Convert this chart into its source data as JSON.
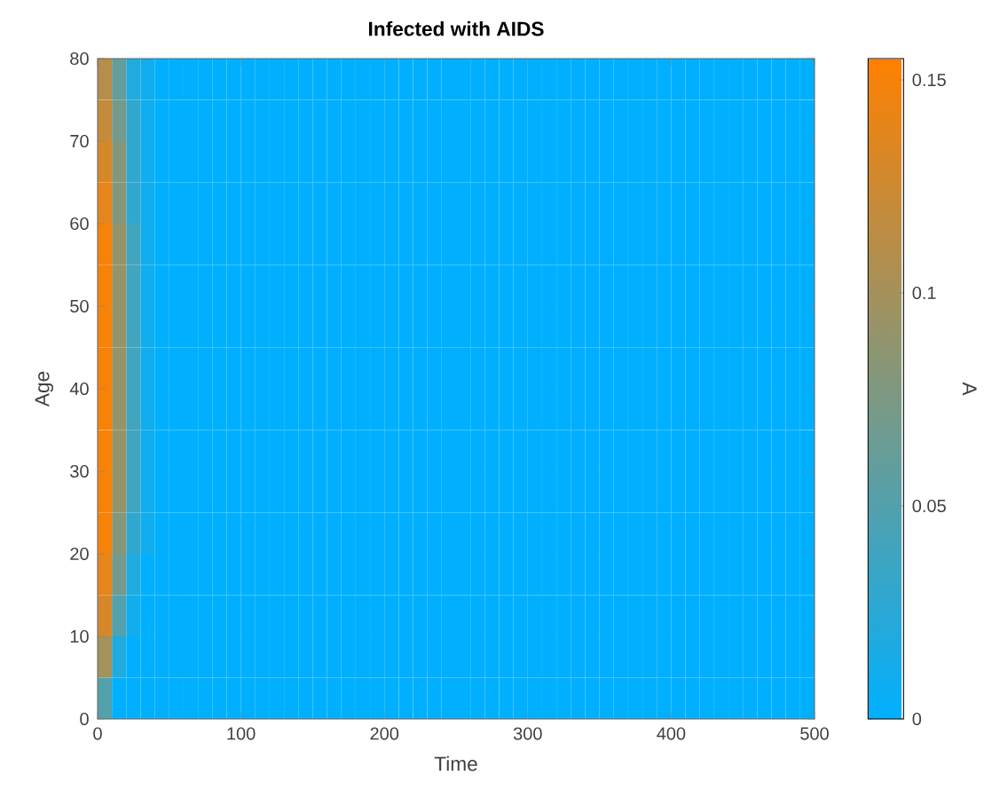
{
  "chart_data": {
    "type": "heatmap",
    "title": "Infected with AIDS",
    "xlabel": "Time",
    "ylabel": "Age",
    "clabel": "A",
    "xlim": [
      0,
      500
    ],
    "ylim": [
      0,
      80
    ],
    "xticks": [
      0,
      100,
      200,
      300,
      400,
      500
    ],
    "yticks": [
      0,
      10,
      20,
      30,
      40,
      50,
      60,
      70,
      80
    ],
    "clim": [
      0,
      0.155
    ],
    "cticks": [
      0,
      0.05,
      0.1,
      0.15
    ],
    "colors": [
      "#00b0ff",
      "#ff8000"
    ],
    "cells": [
      [
        0.11,
        0.06,
        0.02,
        0.01,
        0,
        0,
        0,
        0,
        0,
        0,
        0,
        0,
        0,
        0,
        0,
        0,
        0,
        0,
        0,
        0,
        0,
        0,
        0,
        0,
        0,
        0,
        0,
        0,
        0,
        0,
        0,
        0,
        0,
        0,
        0,
        0,
        0,
        0,
        0,
        0,
        0,
        0,
        0,
        0,
        0,
        0,
        0,
        0,
        0,
        0
      ],
      [
        0.12,
        0.07,
        0.03,
        0.01,
        0,
        0,
        0,
        0,
        0,
        0,
        0,
        0,
        0,
        0,
        0,
        0,
        0,
        0,
        0,
        0,
        0,
        0,
        0,
        0,
        0,
        0,
        0,
        0,
        0,
        0,
        0,
        0,
        0,
        0,
        0,
        0,
        0,
        0,
        0,
        0,
        0,
        0,
        0,
        0,
        0,
        0,
        0,
        0,
        0,
        0
      ],
      [
        0.13,
        0.08,
        0.03,
        0.01,
        0,
        0,
        0,
        0,
        0,
        0,
        0,
        0,
        0,
        0,
        0,
        0,
        0,
        0,
        0,
        0,
        0,
        0,
        0,
        0,
        0,
        0,
        0,
        0,
        0,
        0,
        0,
        0,
        0,
        0,
        0,
        0,
        0,
        0,
        0,
        0,
        0,
        0,
        0,
        0,
        0,
        0,
        0,
        0,
        0,
        0
      ],
      [
        0.14,
        0.08,
        0.03,
        0.01,
        0,
        0,
        0,
        0,
        0,
        0,
        0,
        0,
        0,
        0,
        0,
        0,
        0,
        0,
        0,
        0,
        0,
        0,
        0,
        0,
        0,
        0,
        0,
        0,
        0,
        0,
        0,
        0,
        0,
        0,
        0,
        0,
        0,
        0,
        0,
        0,
        0,
        0,
        0,
        0,
        0,
        0,
        0,
        0,
        0,
        0
      ],
      [
        0.15,
        0.09,
        0.04,
        0.01,
        0,
        0,
        0,
        0,
        0,
        0,
        0,
        0,
        0,
        0,
        0,
        0,
        0,
        0,
        0,
        0,
        0,
        0,
        0,
        0,
        0,
        0,
        0,
        0,
        0,
        0,
        0,
        0,
        0,
        0,
        0,
        0,
        0,
        0,
        0,
        0,
        0,
        0,
        0,
        0,
        0,
        0,
        0,
        0,
        0,
        0
      ],
      [
        0.15,
        0.09,
        0.04,
        0.01,
        0,
        0,
        0,
        0,
        0,
        0,
        0,
        0,
        0,
        0,
        0,
        0,
        0,
        0,
        0,
        0,
        0,
        0,
        0,
        0,
        0,
        0,
        0,
        0,
        0,
        0,
        0,
        0,
        0,
        0,
        0,
        0,
        0,
        0,
        0,
        0,
        0,
        0,
        0,
        0,
        0,
        0,
        0,
        0,
        0,
        0
      ],
      [
        0.15,
        0.09,
        0.04,
        0.01,
        0,
        0,
        0,
        0,
        0,
        0,
        0,
        0,
        0,
        0,
        0,
        0,
        0,
        0,
        0,
        0,
        0,
        0,
        0,
        0,
        0,
        0,
        0,
        0,
        0,
        0,
        0,
        0,
        0,
        0,
        0,
        0,
        0,
        0,
        0,
        0,
        0,
        0,
        0,
        0,
        0,
        0,
        0,
        0,
        0,
        0
      ],
      [
        0.15,
        0.09,
        0.04,
        0.01,
        0,
        0,
        0,
        0,
        0,
        0,
        0,
        0,
        0,
        0,
        0,
        0,
        0,
        0,
        0,
        0,
        0,
        0,
        0,
        0,
        0,
        0,
        0,
        0,
        0,
        0,
        0,
        0,
        0,
        0,
        0,
        0,
        0,
        0,
        0,
        0,
        0,
        0,
        0,
        0,
        0,
        0,
        0,
        0,
        0,
        0
      ],
      [
        0.15,
        0.09,
        0.04,
        0.01,
        0,
        0,
        0,
        0,
        0,
        0,
        0,
        0,
        0,
        0,
        0,
        0,
        0,
        0,
        0,
        0,
        0,
        0,
        0,
        0,
        0,
        0,
        0,
        0,
        0,
        0,
        0,
        0,
        0,
        0,
        0,
        0,
        0,
        0,
        0,
        0,
        0,
        0,
        0,
        0,
        0,
        0,
        0,
        0,
        0,
        0
      ],
      [
        0.15,
        0.09,
        0.04,
        0.01,
        0,
        0,
        0,
        0,
        0,
        0,
        0,
        0,
        0,
        0,
        0,
        0,
        0,
        0,
        0,
        0,
        0,
        0,
        0,
        0,
        0,
        0,
        0,
        0,
        0,
        0,
        0,
        0,
        0,
        0,
        0,
        0,
        0,
        0,
        0,
        0,
        0,
        0,
        0,
        0,
        0,
        0,
        0,
        0,
        0,
        0
      ],
      [
        0.15,
        0.09,
        0.04,
        0.01,
        0,
        0,
        0,
        0,
        0,
        0,
        0,
        0,
        0,
        0,
        0,
        0,
        0,
        0,
        0,
        0,
        0,
        0,
        0,
        0,
        0,
        0,
        0,
        0,
        0,
        0,
        0,
        0,
        0,
        0,
        0,
        0,
        0,
        0,
        0,
        0,
        0,
        0,
        0,
        0,
        0,
        0,
        0,
        0,
        0,
        0
      ],
      [
        0.15,
        0.08,
        0.03,
        0.01,
        0,
        0,
        0,
        0,
        0,
        0,
        0,
        0,
        0,
        0,
        0,
        0,
        0,
        0,
        0,
        0,
        0,
        0,
        0,
        0,
        0,
        0,
        0,
        0,
        0,
        0,
        0,
        0,
        0,
        0,
        0,
        0,
        0,
        0,
        0,
        0,
        0,
        0,
        0,
        0,
        0,
        0,
        0,
        0,
        0,
        0
      ],
      [
        0.14,
        0.07,
        0.02,
        0,
        0,
        0,
        0,
        0,
        0,
        0,
        0,
        0,
        0,
        0,
        0,
        0,
        0,
        0,
        0,
        0,
        0,
        0,
        0,
        0,
        0,
        0,
        0,
        0,
        0,
        0,
        0,
        0,
        0,
        0,
        0,
        0,
        0,
        0,
        0,
        0,
        0,
        0,
        0,
        0,
        0,
        0,
        0,
        0,
        0,
        0
      ],
      [
        0.13,
        0.05,
        0.01,
        0,
        0,
        0,
        0,
        0,
        0,
        0,
        0,
        0,
        0,
        0,
        0,
        0,
        0,
        0,
        0,
        0,
        0,
        0,
        0,
        0,
        0,
        0,
        0,
        0,
        0,
        0,
        0,
        0,
        0,
        0,
        0,
        0,
        0,
        0,
        0,
        0,
        0,
        0,
        0,
        0,
        0,
        0,
        0,
        0,
        0,
        0
      ],
      [
        0.1,
        0.02,
        0,
        0,
        0,
        0,
        0,
        0,
        0,
        0,
        0,
        0,
        0,
        0,
        0,
        0,
        0,
        0,
        0,
        0,
        0,
        0,
        0,
        0,
        0,
        0,
        0,
        0,
        0,
        0,
        0,
        0,
        0,
        0,
        0,
        0,
        0,
        0,
        0,
        0,
        0,
        0,
        0,
        0,
        0,
        0,
        0,
        0,
        0,
        0
      ],
      [
        0.05,
        0,
        0,
        0,
        0,
        0,
        0,
        0,
        0,
        0,
        0,
        0,
        0,
        0,
        0,
        0,
        0,
        0,
        0,
        0,
        0,
        0,
        0,
        0,
        0,
        0,
        0,
        0,
        0,
        0,
        0,
        0,
        0,
        0,
        0,
        0,
        0,
        0,
        0,
        0,
        0,
        0,
        0,
        0,
        0,
        0,
        0,
        0,
        0,
        0
      ]
    ]
  }
}
